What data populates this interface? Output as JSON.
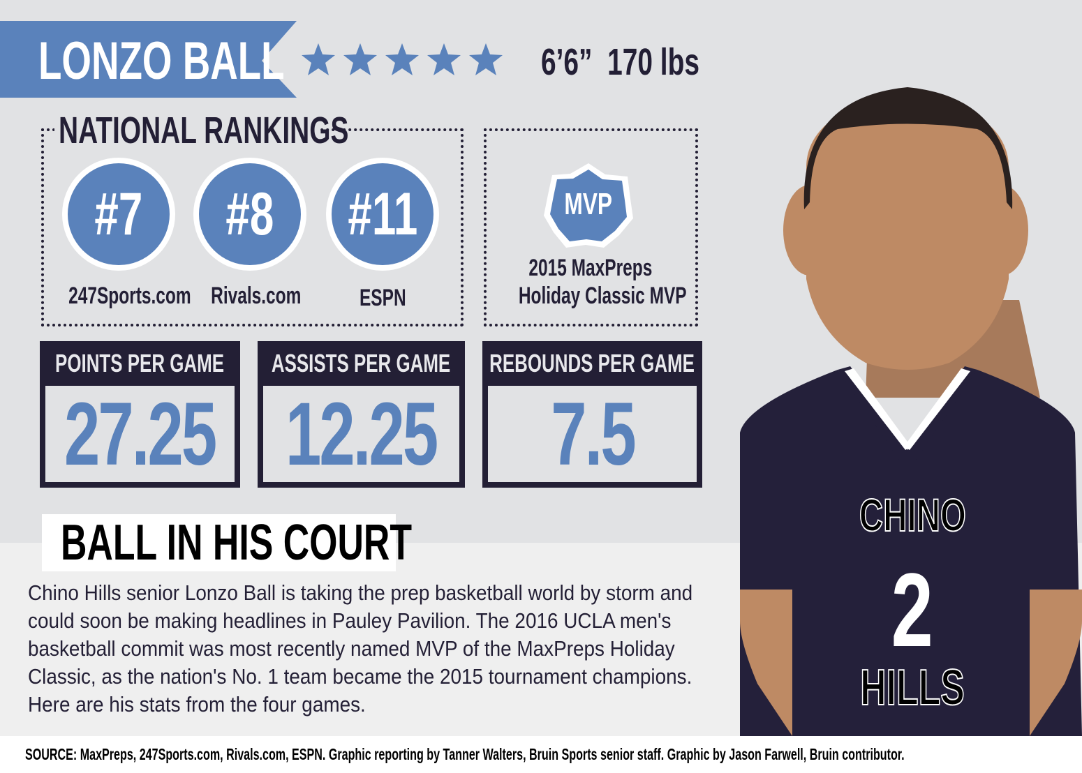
{
  "player": {
    "name": "LONZO BALL",
    "rating_stars": 5,
    "height": "6’6”",
    "weight": "170 lbs"
  },
  "rankings": {
    "title": "NATIONAL RANKINGS",
    "items": [
      {
        "rank": "#7",
        "source": "247Sports.com"
      },
      {
        "rank": "#8",
        "source": "Rivals.com"
      },
      {
        "rank": "#11",
        "source": "ESPN"
      }
    ]
  },
  "award": {
    "badge": "MVP",
    "line1": "2015 MaxPreps",
    "line2": "Holiday Classic MVP"
  },
  "stats": [
    {
      "label": "POINTS PER GAME",
      "value": "27.25"
    },
    {
      "label": "ASSISTS PER GAME",
      "value": "12.25"
    },
    {
      "label": "REBOUNDS PER GAME",
      "value": "7.5"
    }
  ],
  "story": {
    "headline": "BALL IN HIS COURT",
    "body": "Chino Hills senior Lonzo Ball is taking the prep basketball world by storm and could soon be making headlines in Pauley Pavilion. The 2016 UCLA men's basketball commit was most recently named MVP of the MaxPreps Holiday Classic, as the nation's No. 1 team became the 2015 tournament champions. Here are his stats from the four games."
  },
  "jersey": {
    "team_top": "CHINO",
    "number": "2",
    "team_bottom": "HILLS"
  },
  "footer": {
    "source": "SOURCE: MaxPreps, 247Sports.com, Rivals.com, ESPN. Graphic reporting by Tanner Walters, Bruin Sports senior staff. Graphic by Jason Farwell, Bruin contributor."
  },
  "colors": {
    "accent": "#5a82bb",
    "dark": "#231f35",
    "skin": "#be8a64",
    "background": "#e1e2e4"
  }
}
